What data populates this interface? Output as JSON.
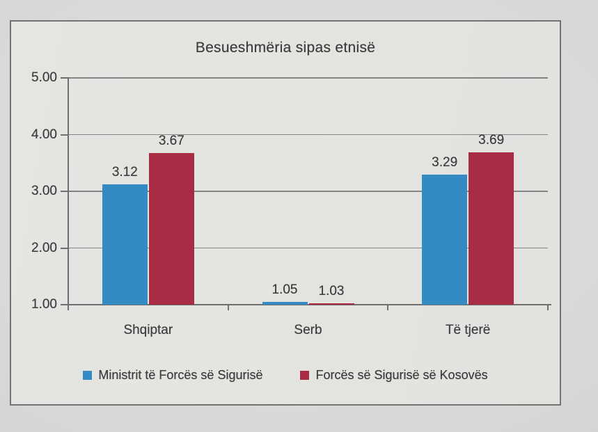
{
  "colors": {
    "series_blue": "#348AC3",
    "series_red": "#A82D44",
    "text": "#3D3D3F",
    "gridline": "#848486",
    "axis": "#6F6F72",
    "frame_border": "#737376",
    "page_bg": "#D7D6D4",
    "chart_bg": "#E3E3E0"
  },
  "chart_data": {
    "type": "bar",
    "title": "Besueshmëria sipas etnisë",
    "categories": [
      "Shqiptar",
      "Serb",
      "Të tjerë"
    ],
    "series": [
      {
        "name": "Ministrit të Forcës së Sigurisë",
        "color_key": "series_blue",
        "values": [
          3.12,
          1.05,
          3.29
        ]
      },
      {
        "name": "Forcës së Sigurisë së Kosovës",
        "color_key": "series_red",
        "values": [
          3.67,
          1.03,
          3.69
        ]
      }
    ],
    "ylim": [
      1.0,
      5.0
    ],
    "ytick_step": 1.0,
    "ytick_labels": [
      "1.00",
      "2.00",
      "3.00",
      "4.00",
      "5.00"
    ],
    "grid": "horizontal",
    "legend_position": "bottom",
    "data_labels": true,
    "data_label_decimals": 2
  }
}
